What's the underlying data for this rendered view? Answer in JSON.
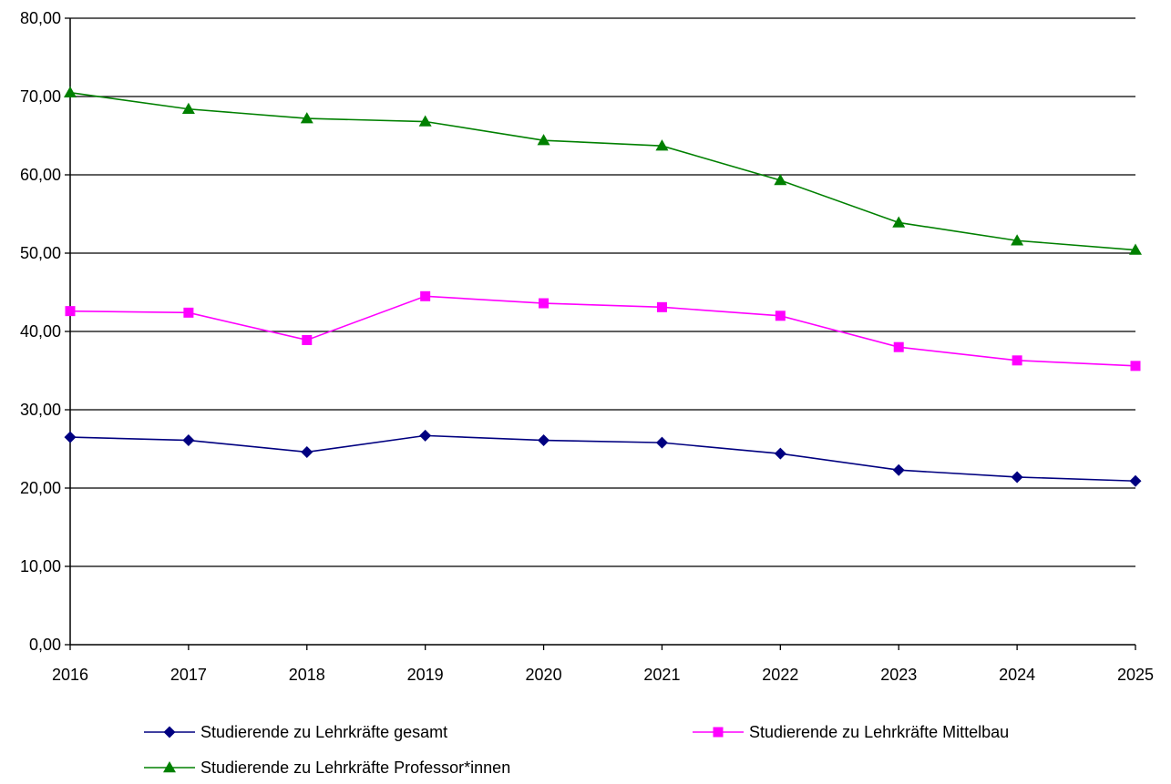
{
  "chart_data": {
    "type": "line",
    "title": "",
    "xlabel": "",
    "ylabel": "",
    "x": [
      "2016",
      "2017",
      "2018",
      "2019",
      "2020",
      "2021",
      "2022",
      "2023",
      "2024",
      "2025"
    ],
    "ylim": [
      0,
      80
    ],
    "yticks": [
      "0,00",
      "10,00",
      "20,00",
      "30,00",
      "40,00",
      "50,00",
      "60,00",
      "70,00",
      "80,00"
    ],
    "grid": "horizontal",
    "legend_position": "bottom",
    "series": [
      {
        "name": "Studierende zu Lehrkräfte gesamt",
        "color": "#000080",
        "marker": "diamond",
        "values": [
          26.5,
          26.1,
          24.6,
          26.7,
          26.1,
          25.8,
          24.4,
          22.3,
          21.4,
          20.9
        ]
      },
      {
        "name": "Studierende zu Lehrkräfte Mittelbau",
        "color": "#FF00FF",
        "marker": "square",
        "values": [
          42.6,
          42.4,
          38.9,
          44.5,
          43.6,
          43.1,
          42.0,
          38.0,
          36.3,
          35.6
        ]
      },
      {
        "name": "Studierende zu Lehrkräfte Professor*innen",
        "color": "#008000",
        "marker": "triangle",
        "values": [
          70.5,
          68.4,
          67.2,
          66.8,
          64.4,
          63.7,
          59.3,
          53.9,
          51.6,
          50.4
        ]
      }
    ]
  }
}
